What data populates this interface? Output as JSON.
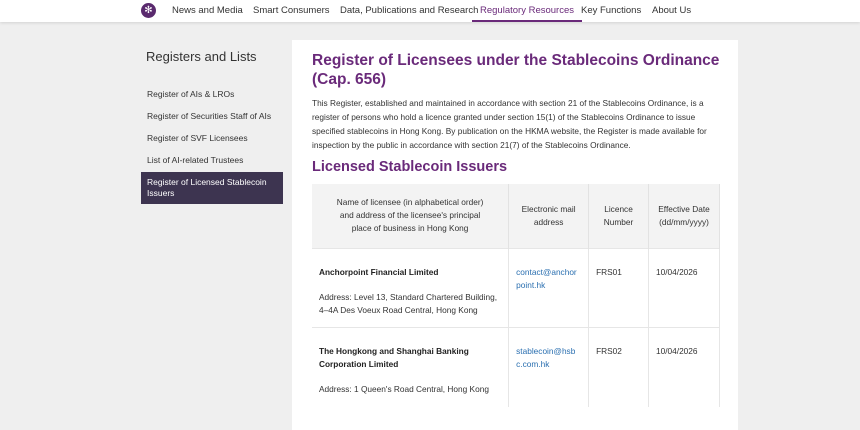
{
  "nav": {
    "logo_icon": "hkma-bauhinia-logo",
    "items": [
      {
        "label": "News and Media"
      },
      {
        "label": "Smart Consumers"
      },
      {
        "label": "Data, Publications and Research"
      },
      {
        "label": "Regulatory Resources",
        "active": true
      },
      {
        "label": "Key Functions"
      },
      {
        "label": "About Us"
      }
    ]
  },
  "sidebar": {
    "title": "Registers and Lists",
    "items": [
      {
        "label": "Register of AIs & LROs"
      },
      {
        "label": "Register of Securities Staff of AIs"
      },
      {
        "label": "Register of SVF Licensees"
      },
      {
        "label": "List of AI-related Trustees"
      },
      {
        "label": "Register of Licensed Stablecoin Issuers",
        "active": true
      }
    ]
  },
  "main": {
    "title": "Register of Licensees under the Stablecoins Ordinance (Cap. 656)",
    "intro": "This Register, established and maintained in accordance with section 21 of the Stablecoins Ordinance, is a register of persons who hold a licence granted under section 15(1) of the Stablecoins Ordinance to issue specified stablecoins in Hong Kong. By publication on the HKMA website, the Register is made available for inspection by the public in accordance with section 21(7) of the Stablecoins Ordinance.",
    "section_title": "Licensed Stablecoin Issuers",
    "table": {
      "headers": [
        "Name of licensee (in alphabetical order) and address of the licensee's principal place of business in Hong Kong",
        "Electronic mail address",
        "Licence Number",
        "Effective Date (dd/mm/yyyy)"
      ],
      "rows": [
        {
          "name": "Anchorpoint Financial Limited",
          "address": "Address: Level 13, Standard Chartered Building, 4–4A Des Voeux Road Central, Hong Kong",
          "email": "contact@anchorpoint.hk",
          "licence": "FRS01",
          "date": "10/04/2026"
        },
        {
          "name": "The Hongkong and Shanghai Banking Corporation Limited",
          "address": "Address: 1 Queen's Road Central, Hong Kong",
          "email": "stablecoin@hsbc.com.hk",
          "licence": "FRS02",
          "date": "10/04/2026"
        }
      ]
    }
  },
  "colors": {
    "accent": "#6a2a7a",
    "sidebar_active": "#3d3450",
    "link": "#2a6fb0"
  }
}
